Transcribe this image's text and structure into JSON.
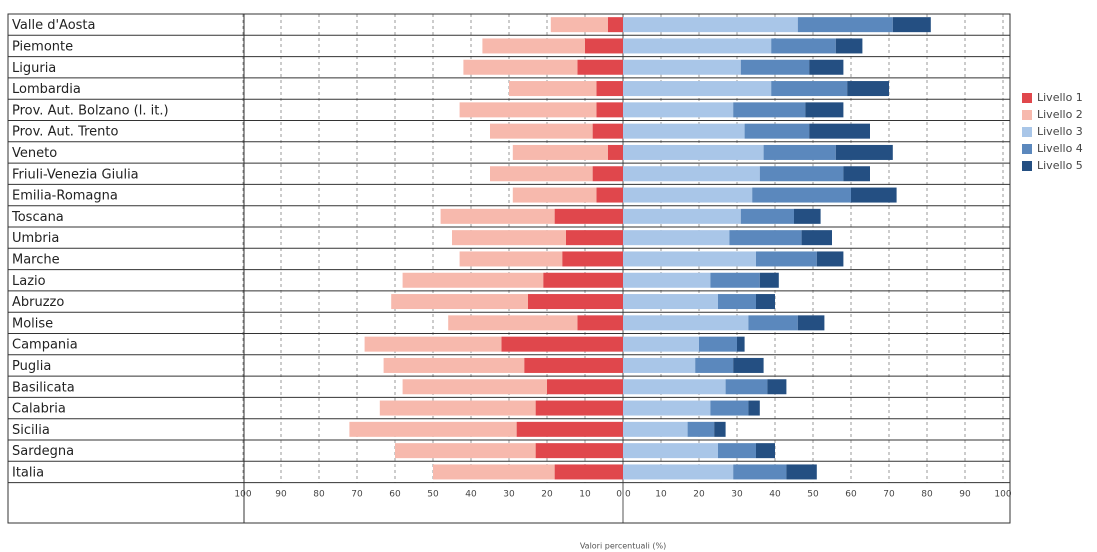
{
  "chart_data": {
    "type": "diverging-stacked-bar",
    "categories": [
      "Valle d'Aosta",
      "Piemonte",
      "Liguria",
      "Lombardia",
      "Prov. Aut. Bolzano (l. it.)",
      "Prov. Aut. Trento",
      "Veneto",
      "Friuli-Venezia Giulia",
      "Emilia-Romagna",
      "Toscana",
      "Umbria",
      "Marche",
      "Lazio",
      "Abruzzo",
      "Molise",
      "Campania",
      "Puglia",
      "Basilicata",
      "Calabria",
      "Sicilia",
      "Sardegna",
      "Italia"
    ],
    "series": [
      {
        "name": "Livello 1",
        "color": "#e0474c",
        "values": [
          -4,
          -10,
          -12,
          -7,
          -7,
          -8,
          -4,
          -8,
          -7,
          -18,
          -15,
          -16,
          -21,
          -25,
          -12,
          -32,
          -26,
          -20,
          -23,
          -28,
          -23,
          -18
        ]
      },
      {
        "name": "Livello 2",
        "color": "#f7b9ad",
        "values": [
          -15,
          -27,
          -30,
          -23,
          -36,
          -27,
          -25,
          -27,
          -22,
          -30,
          -30,
          -27,
          -37,
          -36,
          -34,
          -36,
          -37,
          -38,
          -41,
          -44,
          -37,
          -32
        ]
      },
      {
        "name": "Livello 3",
        "color": "#a9c6e8",
        "values": [
          46,
          39,
          31,
          39,
          29,
          32,
          37,
          36,
          34,
          31,
          28,
          35,
          23,
          25,
          33,
          20,
          19,
          27,
          23,
          17,
          25,
          29
        ]
      },
      {
        "name": "Livello 4",
        "color": "#5b88bd",
        "values": [
          25,
          17,
          18,
          20,
          19,
          17,
          19,
          22,
          26,
          14,
          19,
          16,
          13,
          10,
          13,
          10,
          10,
          11,
          10,
          7,
          10,
          14
        ]
      },
      {
        "name": "Livello 5",
        "color": "#244f82",
        "values": [
          10,
          7,
          9,
          11,
          10,
          16,
          15,
          7,
          12,
          7,
          8,
          7,
          5,
          5,
          7,
          2,
          8,
          5,
          3,
          3,
          5,
          8
        ]
      }
    ],
    "xlabel": "Valori percentuali (%)",
    "xlim": [
      -100,
      100
    ],
    "xticks": [
      {
        "value": -100,
        "label": "100"
      },
      {
        "value": -90,
        "label": "90"
      },
      {
        "value": -80,
        "label": "80"
      },
      {
        "value": -70,
        "label": "70"
      },
      {
        "value": -60,
        "label": "60"
      },
      {
        "value": -50,
        "label": "50"
      },
      {
        "value": -40,
        "label": "40"
      },
      {
        "value": -30,
        "label": "30"
      },
      {
        "value": -20,
        "label": "20"
      },
      {
        "value": -10,
        "label": "10"
      },
      0,
      0,
      10,
      20,
      30,
      40,
      50,
      60,
      70,
      80,
      90,
      100
    ],
    "grid": true,
    "legend": "right"
  }
}
